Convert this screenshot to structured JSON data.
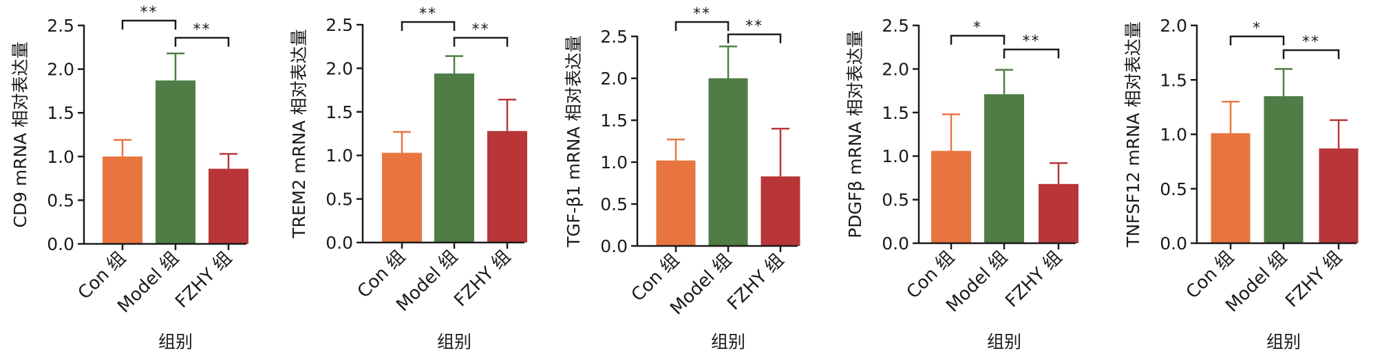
{
  "chart_data": [
    {
      "type": "bar",
      "ylabel": "CD9 mRNA 相对表达量",
      "xlabel": "组别",
      "categories": [
        "Con 组",
        "Model 组",
        "FZHY 组"
      ],
      "values": [
        1.0,
        1.87,
        0.86
      ],
      "errors": [
        0.19,
        0.31,
        0.17
      ],
      "colors": [
        "#E87540",
        "#4F7D45",
        "#B83638"
      ],
      "ylim": [
        0,
        2.5
      ],
      "yticks": [
        "0.0",
        "0.5",
        "1.0",
        "1.5",
        "2.0",
        "2.5"
      ],
      "significance": [
        {
          "from": 0,
          "to": 1,
          "label": "**"
        },
        {
          "from": 1,
          "to": 2,
          "label": "**"
        }
      ]
    },
    {
      "type": "bar",
      "ylabel": "TREM2 mRNA 相对表达量",
      "xlabel": "组别",
      "categories": [
        "Con 组",
        "Model 组",
        "FZHY 组"
      ],
      "values": [
        1.03,
        1.94,
        1.28
      ],
      "errors": [
        0.24,
        0.2,
        0.36
      ],
      "colors": [
        "#E87540",
        "#4F7D45",
        "#B83638"
      ],
      "ylim": [
        0,
        2.5
      ],
      "yticks": [
        "0.0",
        "0.5",
        "1.0",
        "1.5",
        "2.0",
        "2.5"
      ],
      "significance": [
        {
          "from": 0,
          "to": 1,
          "label": "**"
        },
        {
          "from": 1,
          "to": 2,
          "label": "**"
        }
      ]
    },
    {
      "type": "bar",
      "ylabel": "TGF-β1 mRNA 相对表达量",
      "xlabel": "组别",
      "categories": [
        "Con 组",
        "Model 组",
        "FZHY 组"
      ],
      "values": [
        1.02,
        2.0,
        0.83
      ],
      "errors": [
        0.25,
        0.38,
        0.57
      ],
      "colors": [
        "#E87540",
        "#4F7D45",
        "#B83638"
      ],
      "ylim": [
        0,
        2.5
      ],
      "yticks": [
        "0.0",
        "0.5",
        "1.0",
        "1.5",
        "2.0",
        "2.5"
      ],
      "significance": [
        {
          "from": 0,
          "to": 1,
          "label": "**"
        },
        {
          "from": 1,
          "to": 2,
          "label": "**"
        }
      ]
    },
    {
      "type": "bar",
      "ylabel": "PDGFβ mRNA 相对表达量",
      "xlabel": "组别",
      "categories": [
        "Con 组",
        "Model 组",
        "FZHY 组"
      ],
      "values": [
        1.06,
        1.71,
        0.68
      ],
      "errors": [
        0.42,
        0.28,
        0.24
      ],
      "colors": [
        "#E87540",
        "#4F7D45",
        "#B83638"
      ],
      "ylim": [
        0,
        2.5
      ],
      "yticks": [
        "0.0",
        "0.5",
        "1.0",
        "1.5",
        "2.0",
        "2.5"
      ],
      "significance": [
        {
          "from": 0,
          "to": 1,
          "label": "*"
        },
        {
          "from": 1,
          "to": 2,
          "label": "**"
        }
      ]
    },
    {
      "type": "bar",
      "ylabel": "TNFSF12 mRNA 相对表达量",
      "xlabel": "组别",
      "categories": [
        "Con 组",
        "Model 组",
        "FZHY 组"
      ],
      "values": [
        1.01,
        1.35,
        0.87
      ],
      "errors": [
        0.29,
        0.25,
        0.26
      ],
      "colors": [
        "#E87540",
        "#4F7D45",
        "#B83638"
      ],
      "ylim": [
        0,
        2.0
      ],
      "yticks": [
        "0.0",
        "0.5",
        "1.0",
        "1.5",
        "2.0"
      ],
      "significance": [
        {
          "from": 0,
          "to": 1,
          "label": "*"
        },
        {
          "from": 1,
          "to": 2,
          "label": "**"
        }
      ]
    }
  ]
}
